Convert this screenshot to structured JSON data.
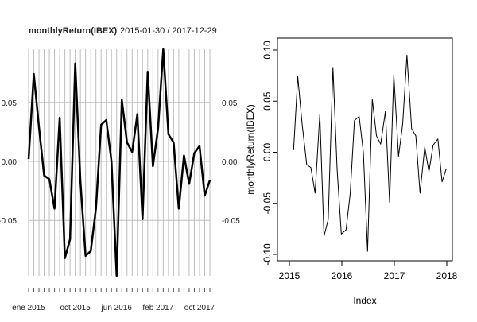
{
  "chart_data": [
    {
      "type": "line",
      "title": "monthlyReturn(IBEX)",
      "subtitle": "2015-01-30 / 2017-12-29",
      "xlabel": "",
      "ylabel": "",
      "ylim": [
        -0.097,
        0.095
      ],
      "grid": true,
      "x_tick_labels": [
        "ene 2015",
        "oct 2015",
        "jun 2016",
        "feb 2017",
        "oct 2017"
      ],
      "y_tick_labels_left": [
        "0.05",
        "0.00",
        "-0.05"
      ],
      "y_tick_labels_right": [
        "0.05",
        "0.00",
        "-0.05"
      ],
      "series": [
        {
          "values": [
            0.002,
            0.074,
            0.029,
            -0.012,
            -0.015,
            -0.04,
            0.037,
            -0.082,
            -0.066,
            0.083,
            -0.017,
            -0.08,
            -0.076,
            -0.04,
            0.031,
            0.035,
            0.0,
            -0.097,
            0.052,
            0.016,
            0.008,
            0.04,
            -0.049,
            0.076,
            -0.004,
            0.028,
            0.095,
            0.023,
            0.016,
            -0.04,
            0.005,
            -0.019,
            0.007,
            0.013,
            -0.029,
            -0.016
          ]
        }
      ]
    },
    {
      "type": "line",
      "title": "",
      "xlabel": "Index",
      "ylabel": "monthlyReturn(IBEX)",
      "xlim": [
        2015.0,
        2018.0
      ],
      "ylim": [
        -0.1,
        0.1
      ],
      "grid": false,
      "x_tick_labels": [
        "2015",
        "2016",
        "2017",
        "2018"
      ],
      "y_tick_labels": [
        "-0.10",
        "-0.05",
        "0.00",
        "0.05",
        "0.10"
      ],
      "series": [
        {
          "x": [
            2015.08,
            2015.16,
            2015.24,
            2015.33,
            2015.41,
            2015.49,
            2015.58,
            2015.66,
            2015.74,
            2015.83,
            2015.91,
            2015.99,
            2016.08,
            2016.16,
            2016.24,
            2016.33,
            2016.41,
            2016.49,
            2016.58,
            2016.66,
            2016.74,
            2016.83,
            2016.91,
            2016.99,
            2017.08,
            2017.16,
            2017.24,
            2017.33,
            2017.41,
            2017.49,
            2017.58,
            2017.66,
            2017.74,
            2017.83,
            2017.91,
            2017.99
          ],
          "values": [
            0.002,
            0.074,
            0.029,
            -0.012,
            -0.015,
            -0.04,
            0.037,
            -0.082,
            -0.066,
            0.083,
            -0.017,
            -0.08,
            -0.076,
            -0.04,
            0.031,
            0.035,
            0.0,
            -0.097,
            0.052,
            0.016,
            0.008,
            0.04,
            -0.049,
            0.076,
            -0.004,
            0.028,
            0.095,
            0.023,
            0.016,
            -0.04,
            0.005,
            -0.019,
            0.007,
            0.013,
            -0.029,
            -0.016
          ]
        }
      ]
    }
  ]
}
